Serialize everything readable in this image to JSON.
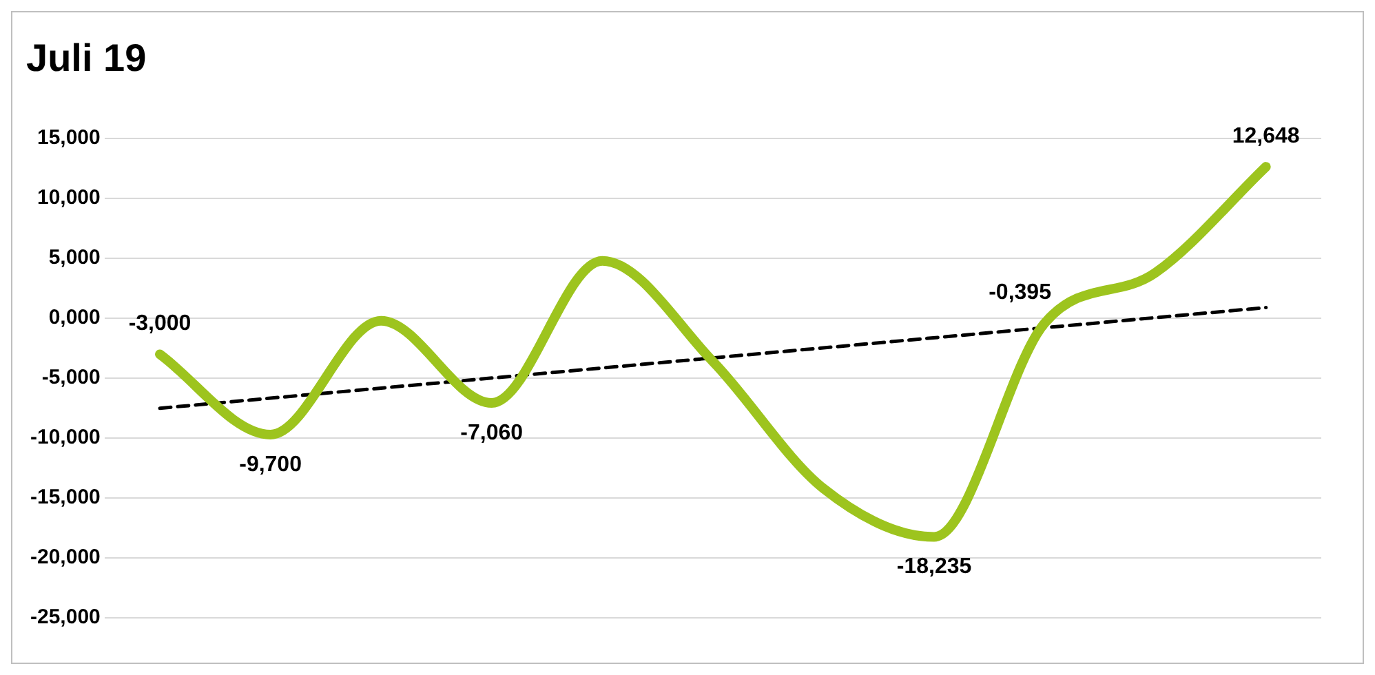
{
  "chart_data": {
    "type": "line",
    "title": "Juli 19",
    "categories": [
      null,
      null,
      null,
      null,
      null,
      null,
      null,
      null,
      null,
      null,
      null
    ],
    "series": [
      {
        "color": "#9dc41e",
        "values": [
          -3,
          -9.7,
          -0.2,
          -7.06,
          4.8,
          -3.6,
          -14.2,
          -18.235,
          -0.395,
          3.8,
          12.648
        ],
        "value_labels": [
          "-3,000",
          "-9,700",
          null,
          "-7,060",
          null,
          null,
          null,
          "-18,235",
          "-0,395",
          null,
          "12,648"
        ]
      },
      {
        "color": "#000000",
        "line_style": "dashed",
        "values": [
          -7.5,
          null,
          null,
          null,
          null,
          null,
          null,
          null,
          null,
          null,
          0.9
        ]
      }
    ],
    "ylim": [
      -25,
      15
    ],
    "yticks": [
      {
        "value": -25,
        "label": "-25,000"
      },
      {
        "value": -20,
        "label": "-20,000"
      },
      {
        "value": -15,
        "label": "-15,000"
      },
      {
        "value": -10,
        "label": "-10,000"
      },
      {
        "value": -5,
        "label": "-5,000"
      },
      {
        "value": 0,
        "label": "0,000"
      },
      {
        "value": 5,
        "label": "5,000"
      },
      {
        "value": 10,
        "label": "10,000"
      },
      {
        "value": 15,
        "label": "15,000"
      }
    ],
    "grid": "y",
    "legend": false,
    "marker": "none"
  }
}
